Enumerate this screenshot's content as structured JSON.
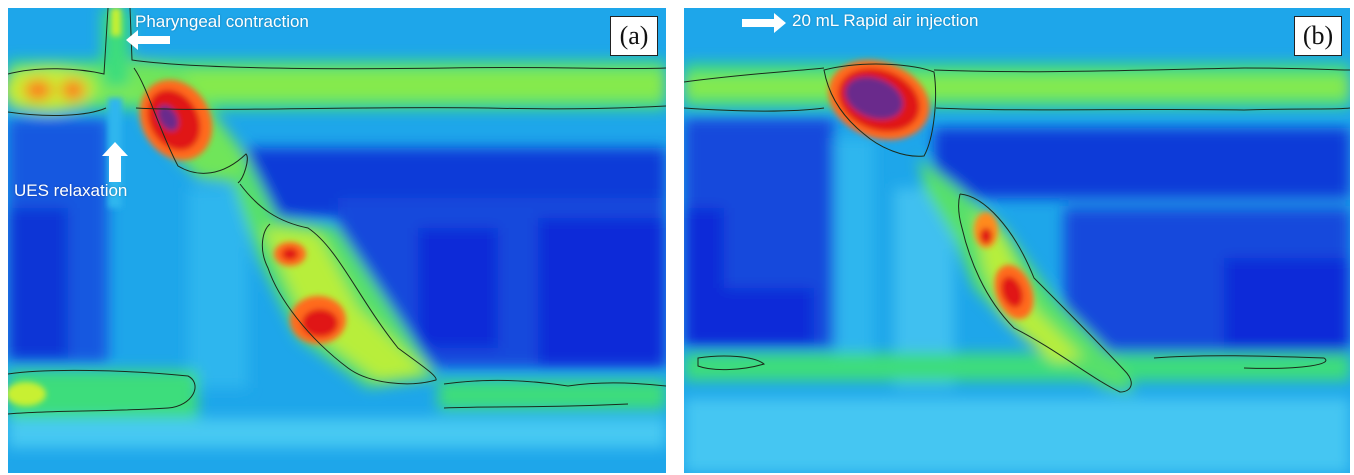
{
  "panels": [
    {
      "label": "(a)",
      "annotations": {
        "pharyngeal": "Pharyngeal contraction",
        "ues": "UES relaxation"
      }
    },
    {
      "label": "(b)",
      "annotations": {
        "air": "20 mL Rapid air injection"
      }
    }
  ],
  "colors": {
    "low_pressure": "#0a2bd8",
    "baseline": "#1ea6ea",
    "mid": "#3fe07a",
    "elevated": "#c8f030",
    "high": "#ff8a1a",
    "peak": "#e01818",
    "max": "#6a2a8c",
    "contour": "#1b2b1b",
    "annotation_text": "#ffffff"
  },
  "icons": [
    "arrow-left-icon",
    "arrow-up-icon",
    "arrow-right-icon"
  ]
}
